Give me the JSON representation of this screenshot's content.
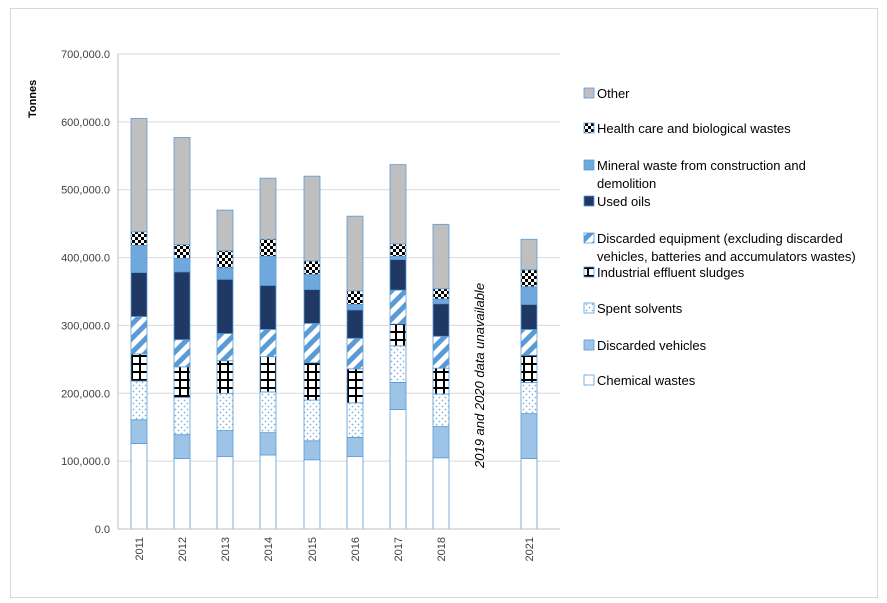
{
  "chart_data": {
    "type": "bar",
    "stacked": true,
    "categories": [
      "2011",
      "2012",
      "2013",
      "2014",
      "2015",
      "2016",
      "2017",
      "2018",
      "2021"
    ],
    "ylabel": "Tonnes",
    "ylim": [
      0,
      700000
    ],
    "yticks": [
      "0.0",
      "100,000.0",
      "200,000.0",
      "300,000.0",
      "400,000.0",
      "500,000.0",
      "600,000.0",
      "700,000.0"
    ],
    "grid": true,
    "legend_position": "right",
    "annotation": "2019 and 2020 data unavailable",
    "series": [
      {
        "name": "Chemical wastes",
        "color": "#ffffff",
        "pattern": "plain",
        "values": [
          126000,
          104000,
          107000,
          109000,
          102000,
          107000,
          176000,
          105000,
          104000
        ]
      },
      {
        "name": "Discarded vehicles",
        "color": "#9dc3e6",
        "pattern": "solid",
        "values": [
          35000,
          35000,
          38000,
          33000,
          28000,
          28000,
          40000,
          46000,
          66000
        ]
      },
      {
        "name": "Spent solvents",
        "color": "#bdd7ee",
        "pattern": "dots",
        "values": [
          57000,
          55000,
          55000,
          60000,
          60000,
          51000,
          54000,
          48000,
          46000
        ]
      },
      {
        "name": "Industrial effluent sludges",
        "color": "#ffffff",
        "pattern": "grid",
        "values": [
          40000,
          45000,
          48000,
          52000,
          55000,
          50000,
          32000,
          38000,
          40000
        ]
      },
      {
        "name": "Discarded equipment (excluding discarded vehicles, batteries and accumulators wastes)",
        "color": "#9dc3e6",
        "pattern": "diagonal",
        "values": [
          55000,
          40000,
          40000,
          40000,
          58000,
          45000,
          50000,
          47000,
          38000
        ]
      },
      {
        "name": "Used oils",
        "color": "#1f3864",
        "pattern": "solid",
        "values": [
          65000,
          100000,
          80000,
          65000,
          50000,
          42000,
          45000,
          48000,
          37000
        ]
      },
      {
        "name": "Mineral waste from construction and demolition",
        "color": "#6fa8dc",
        "pattern": "solid",
        "values": [
          40000,
          20000,
          17000,
          43000,
          22000,
          8000,
          5000,
          7000,
          26000
        ]
      },
      {
        "name": "Health care and biological wastes",
        "color": "#000000",
        "pattern": "checker",
        "values": [
          20000,
          20000,
          25000,
          25000,
          20000,
          20000,
          18000,
          15000,
          25000
        ]
      },
      {
        "name": "Other",
        "color": "#bfbfbf",
        "pattern": "solid",
        "values": [
          167000,
          158000,
          60000,
          90000,
          125000,
          110000,
          117000,
          95000,
          45000
        ]
      }
    ]
  }
}
